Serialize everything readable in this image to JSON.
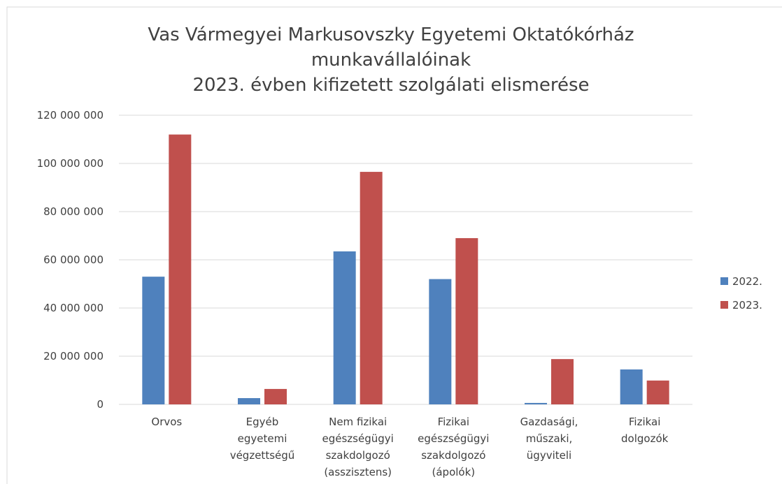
{
  "chart_data": {
    "type": "bar",
    "title": [
      "Vas Vármegyei Markusovszky Egyetemi Oktatókórház",
      "munkavállalóinak",
      "2023. évben kifizetett szolgálati elismerése"
    ],
    "categories": [
      [
        "Orvos"
      ],
      [
        "Egyéb",
        "egyetemi",
        "végzettségű"
      ],
      [
        "Nem fizikai",
        "egészségügyi",
        "szakdolgozó",
        "(asszisztens)"
      ],
      [
        "Fizikai",
        "egészségügyi",
        "szakdolgozó",
        "(ápolók)"
      ],
      [
        "Gazdasági,",
        "műszaki,",
        "ügyviteli"
      ],
      [
        "Fizikai",
        "dolgozók"
      ]
    ],
    "series": [
      {
        "name": "2022.",
        "color": "#4f81bd",
        "values": [
          53000000,
          2600000,
          63500000,
          52000000,
          600000,
          14500000
        ]
      },
      {
        "name": "2023.",
        "color": "#c0504d",
        "values": [
          112000000,
          6400000,
          96500000,
          69000000,
          18800000,
          9900000
        ]
      }
    ],
    "ylim": [
      0,
      120000000
    ],
    "yticks": [
      0,
      {
        "value": 20000000,
        "label": "20 000 000"
      },
      {
        "value": 40000000,
        "label": "40 000 000"
      },
      {
        "value": 60000000,
        "label": "60 000 000"
      },
      {
        "value": 80000000,
        "label": "80 000 000"
      },
      {
        "value": 100000000,
        "label": "100 000 000"
      },
      {
        "value": 120000000,
        "label": "120 000 000"
      }
    ],
    "grid": true,
    "legend": "right"
  }
}
